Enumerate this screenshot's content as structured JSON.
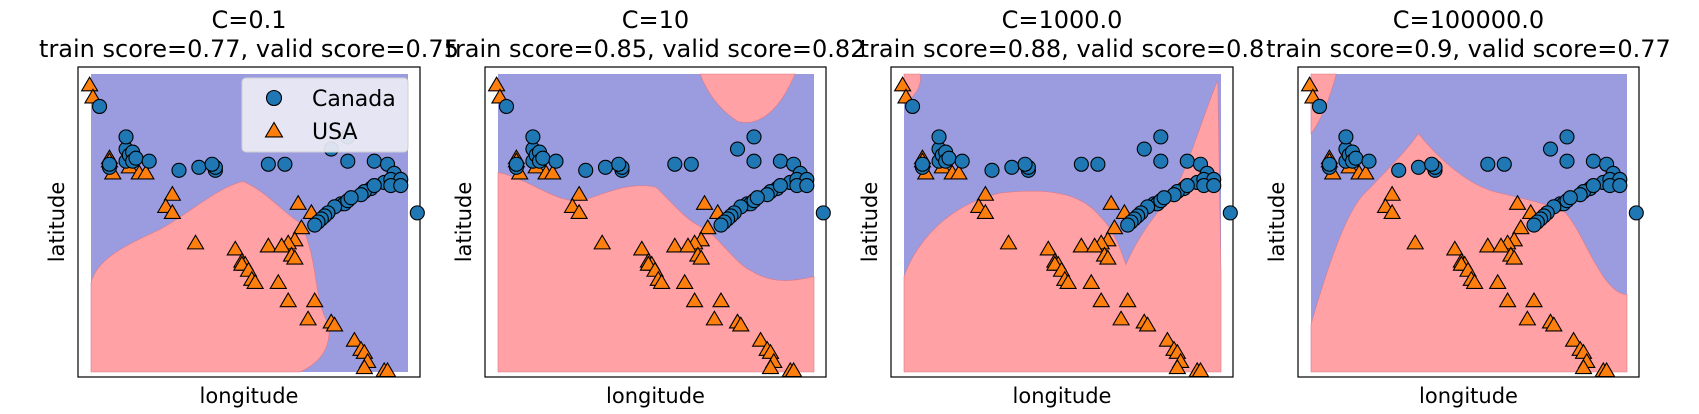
{
  "figure": {
    "xlabel": "longitude",
    "ylabel": "latitude",
    "legend": {
      "placement": "top-right of first panel",
      "entries": [
        {
          "label": "Canada",
          "marker": "circle",
          "color": "#1f77b4"
        },
        {
          "label": "USA",
          "marker": "triangle",
          "color": "#ff7f0e"
        }
      ]
    },
    "colors": {
      "canada_region": "#9b9ce0",
      "usa_region": "#ffa1a5",
      "canada_marker": "#1f77b4",
      "usa_marker": "#ff7f0e",
      "marker_edge": "#000000"
    }
  },
  "chart_data": [
    {
      "type": "scatter",
      "title_line1": "C=0.1",
      "title_line2": "train score=0.77, valid score=0.75",
      "xlabel": "longitude",
      "ylabel": "latitude",
      "ticks_visible": false,
      "legend": true,
      "decision_boundary": "a"
    },
    {
      "type": "scatter",
      "title_line1": "C=10",
      "title_line2": "train score=0.85, valid score=0.82",
      "xlabel": "longitude",
      "ylabel": "latitude",
      "ticks_visible": false,
      "legend": false,
      "decision_boundary": "b"
    },
    {
      "type": "scatter",
      "title_line1": "C=1000.0",
      "title_line2": "train score=0.88, valid score=0.8",
      "xlabel": "longitude",
      "ylabel": "latitude",
      "ticks_visible": false,
      "legend": false,
      "decision_boundary": "c"
    },
    {
      "type": "scatter",
      "title_line1": "C=100000.0",
      "title_line2": "train score=0.9, valid score=0.77",
      "xlabel": "longitude",
      "ylabel": "latitude",
      "ticks_visible": false,
      "legend": false,
      "decision_boundary": "d"
    }
  ],
  "points": {
    "canada": [
      [
        5,
        88
      ],
      [
        13,
        70
      ],
      [
        13,
        74
      ],
      [
        13,
        78
      ],
      [
        14,
        72
      ],
      [
        15,
        73
      ],
      [
        15,
        70
      ],
      [
        16,
        71
      ],
      [
        8,
        68
      ],
      [
        8,
        69
      ],
      [
        29,
        67
      ],
      [
        35,
        68
      ],
      [
        40,
        67
      ],
      [
        40,
        68
      ],
      [
        39,
        69
      ],
      [
        56,
        69
      ],
      [
        61,
        69
      ],
      [
        20,
        70
      ],
      [
        75,
        74
      ],
      [
        80,
        78
      ],
      [
        80,
        70
      ],
      [
        88,
        70
      ],
      [
        92,
        69
      ],
      [
        94,
        66
      ],
      [
        91,
        63
      ],
      [
        93,
        64
      ],
      [
        87,
        61
      ],
      [
        85,
        60
      ],
      [
        84,
        59
      ],
      [
        96,
        64
      ],
      [
        78,
        56
      ],
      [
        79,
        56
      ],
      [
        80,
        57
      ],
      [
        81,
        58
      ],
      [
        76,
        55
      ],
      [
        74,
        53
      ],
      [
        73,
        52
      ],
      [
        72,
        51
      ],
      [
        71,
        50
      ],
      [
        70,
        49
      ],
      [
        93,
        62
      ],
      [
        88,
        62
      ],
      [
        101,
        53
      ],
      [
        96,
        62
      ]
    ],
    "usa": [
      [
        2,
        95
      ],
      [
        3,
        91
      ],
      [
        8,
        71
      ],
      [
        8,
        70
      ],
      [
        9,
        66
      ],
      [
        14,
        68
      ],
      [
        17,
        66
      ],
      [
        19,
        66
      ],
      [
        27,
        59
      ],
      [
        25,
        55
      ],
      [
        27,
        53
      ],
      [
        34,
        43
      ],
      [
        46,
        41
      ],
      [
        48,
        37
      ],
      [
        49,
        36
      ],
      [
        48,
        36
      ],
      [
        50,
        34
      ],
      [
        51,
        31
      ],
      [
        52,
        30
      ],
      [
        65,
        56
      ],
      [
        69,
        53
      ],
      [
        66,
        48
      ],
      [
        64,
        44
      ],
      [
        62,
        43
      ],
      [
        56,
        42
      ],
      [
        60,
        42
      ],
      [
        63,
        39
      ],
      [
        64,
        38
      ],
      [
        59,
        30
      ],
      [
        62,
        24
      ],
      [
        70,
        24
      ],
      [
        68,
        18
      ],
      [
        75,
        17
      ],
      [
        76,
        16
      ],
      [
        82,
        11
      ],
      [
        84,
        8
      ],
      [
        85,
        7
      ],
      [
        86,
        4
      ],
      [
        85,
        2
      ],
      [
        91,
        1
      ],
      [
        92,
        1
      ]
    ]
  }
}
